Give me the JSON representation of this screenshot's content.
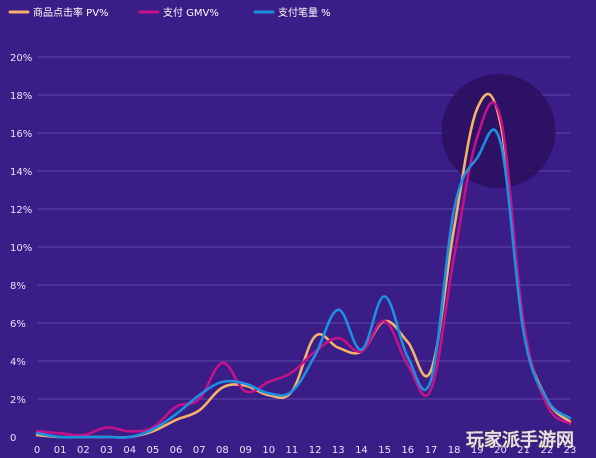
{
  "chart_data": {
    "type": "line",
    "categories": [
      "0",
      "01",
      "02",
      "03",
      "04",
      "05",
      "06",
      "07",
      "08",
      "09",
      "10",
      "11",
      "12",
      "13",
      "14",
      "15",
      "16",
      "17",
      "18",
      "19",
      "20",
      "21",
      "22",
      "23"
    ],
    "series": [
      {
        "name": "商品点击率 PV%",
        "color": "#f4b26a",
        "values": [
          0.1,
          0.0,
          0.0,
          0.0,
          0.0,
          0.3,
          0.9,
          1.4,
          2.6,
          2.7,
          2.2,
          2.4,
          5.3,
          4.7,
          4.5,
          6.1,
          5.0,
          3.5,
          11.0,
          17.3,
          16.5,
          5.8,
          2.0,
          0.8
        ]
      },
      {
        "name": "支付 GMV%",
        "color": "#c4128a",
        "values": [
          0.3,
          0.2,
          0.1,
          0.5,
          0.3,
          0.5,
          1.6,
          2.0,
          3.9,
          2.4,
          2.9,
          3.4,
          4.5,
          5.2,
          4.5,
          6.1,
          3.8,
          2.5,
          9.5,
          15.8,
          16.8,
          6.0,
          1.7,
          0.7
        ]
      },
      {
        "name": "支付笔量 %",
        "color": "#1c8fdf",
        "values": [
          0.2,
          0.0,
          0.0,
          0.0,
          0.0,
          0.4,
          1.2,
          2.2,
          2.9,
          2.8,
          2.3,
          2.4,
          4.3,
          6.7,
          4.6,
          7.4,
          4.2,
          3.0,
          12.0,
          14.7,
          15.5,
          5.5,
          2.0,
          1.0
        ]
      }
    ],
    "y_ticks": [
      "0",
      "2%",
      "4%",
      "6%",
      "8%",
      "10%",
      "12%",
      "14%",
      "16%",
      "18%",
      "20%"
    ],
    "ylim": [
      0,
      20
    ],
    "grid": "horizontal",
    "legend_position": "top-left",
    "highlight": {
      "x": "20",
      "y": 16.1,
      "note": "dark circle highlighting peak"
    }
  },
  "watermark": "玩家派手游网"
}
